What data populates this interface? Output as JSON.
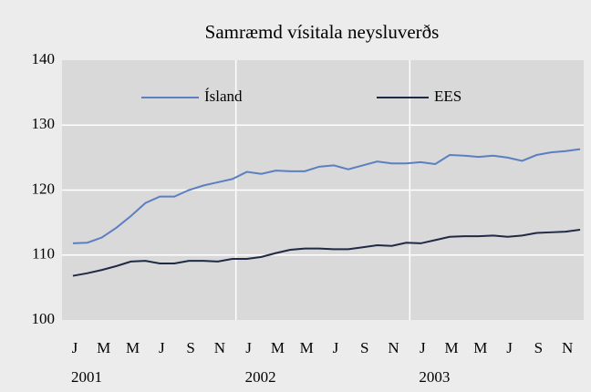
{
  "chart_data": {
    "type": "line",
    "title": "Samræmd vísitala neysluverðs",
    "categories": [
      "J",
      null,
      "M",
      null,
      "M",
      null,
      "J",
      null,
      "S",
      null,
      "N",
      null,
      "J",
      null,
      "M",
      null,
      "M",
      null,
      "J",
      null,
      "S",
      null,
      "N",
      null,
      "J",
      null,
      "M",
      null,
      "M",
      null,
      "J",
      null,
      "S",
      null,
      "N",
      null
    ],
    "year_labels": [
      "2001",
      "2002",
      "2003"
    ],
    "series": [
      {
        "name": "Ísland",
        "color": "#5b7fc0",
        "values": [
          111.8,
          111.9,
          112.7,
          114.2,
          116,
          118,
          119,
          119,
          120,
          120.7,
          121.2,
          121.7,
          122.8,
          122.5,
          123,
          122.9,
          122.9,
          123.6,
          123.8,
          123.2,
          123.8,
          124.4,
          124.1,
          124.1,
          124.3,
          124,
          125.4,
          125.3,
          125.1,
          125.3,
          125,
          124.5,
          125.4,
          125.8,
          126,
          126.3
        ]
      },
      {
        "name": "EES",
        "color": "#1f2a44",
        "values": [
          106.8,
          107.2,
          107.7,
          108.3,
          109,
          109.1,
          108.7,
          108.7,
          109.1,
          109.1,
          109,
          109.4,
          109.4,
          109.7,
          110.3,
          110.8,
          111,
          111,
          110.9,
          110.9,
          111.2,
          111.5,
          111.4,
          111.9,
          111.8,
          112.3,
          112.8,
          112.9,
          112.9,
          113,
          112.8,
          113,
          113.4,
          113.5,
          113.6,
          113.9
        ]
      }
    ],
    "ylim": [
      100,
      140
    ],
    "yticks": [
      100,
      110,
      120,
      130,
      140
    ],
    "grid": true,
    "legend": "top"
  }
}
